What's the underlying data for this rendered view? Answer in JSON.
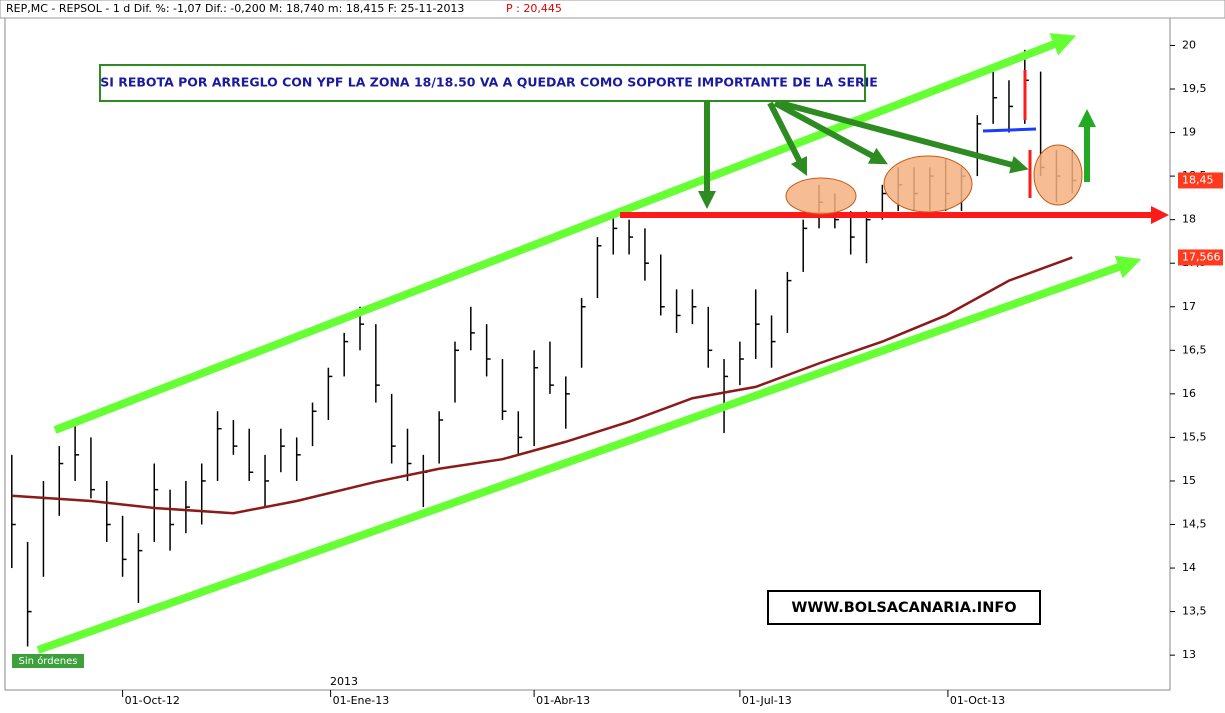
{
  "chart_data": {
    "type": "ohlc",
    "header": "REP,MC - REPSOL -  1 d Dif. %: -1,07 Dif.: -0,200 M: 18,740 m: 18,415 F: 25-11-2013",
    "header_price": "P : 20,445",
    "annotation": "SI REBOTA POR ARREGLO CON YPF LA ZONA 18/18.50 VA A QUEDAR COMO SOPORTE IMPORTANTE DE LA SERIE",
    "watermark": "WWW.BOLSACANARIA.INFO",
    "status": "Sin órdenes",
    "year_label": "2013",
    "xlim": [
      "2012-08-10",
      "2014-01-05"
    ],
    "xticks": [
      {
        "value": "2012-10-01",
        "label": "01-Oct-12"
      },
      {
        "value": "2013-01-01",
        "label": "01-Ene-13"
      },
      {
        "value": "2013-04-01",
        "label": "01-Abr-13"
      },
      {
        "value": "2013-07-01",
        "label": "01-Jul-13"
      },
      {
        "value": "2013-10-01",
        "label": "01-Oct-13"
      }
    ],
    "ylim": [
      12.6,
      20.43
    ],
    "yticks": [
      13,
      {
        "value": 13.5,
        "label": "13,5"
      },
      14,
      {
        "value": 14.5,
        "label": "14,5"
      },
      15,
      {
        "value": 15.5,
        "label": "15,5"
      },
      16,
      {
        "value": 16.5,
        "label": "16,5"
      },
      17,
      {
        "value": 17.5,
        "label": "17,5"
      },
      18,
      {
        "value": 18.5,
        "label": "18,5"
      },
      19,
      {
        "value": 19.5,
        "label": "19,5"
      },
      20
    ],
    "ohlc": {
      "color": "#000000",
      "x": [
        "2012-08-13",
        "2012-08-20",
        "2012-08-27",
        "2012-09-03",
        "2012-09-10",
        "2012-09-17",
        "2012-09-24",
        "2012-10-01",
        "2012-10-08",
        "2012-10-15",
        "2012-10-22",
        "2012-10-29",
        "2012-11-05",
        "2012-11-12",
        "2012-11-19",
        "2012-11-26",
        "2012-12-03",
        "2012-12-10",
        "2012-12-17",
        "2012-12-24",
        "2012-12-31",
        "2013-01-07",
        "2013-01-14",
        "2013-01-21",
        "2013-01-28",
        "2013-02-04",
        "2013-02-11",
        "2013-02-18",
        "2013-02-25",
        "2013-03-04",
        "2013-03-11",
        "2013-03-18",
        "2013-03-25",
        "2013-04-01",
        "2013-04-08",
        "2013-04-15",
        "2013-04-22",
        "2013-04-29",
        "2013-05-06",
        "2013-05-13",
        "2013-05-20",
        "2013-05-27",
        "2013-06-03",
        "2013-06-10",
        "2013-06-17",
        "2013-06-24",
        "2013-07-01",
        "2013-07-08",
        "2013-07-15",
        "2013-07-22",
        "2013-07-29",
        "2013-08-05",
        "2013-08-12",
        "2013-08-19",
        "2013-08-26",
        "2013-09-02",
        "2013-09-09",
        "2013-09-16",
        "2013-09-23",
        "2013-09-30",
        "2013-10-07",
        "2013-10-14",
        "2013-10-21",
        "2013-10-28",
        "2013-11-04",
        "2013-11-11",
        "2013-11-18",
        "2013-11-25"
      ],
      "high": [
        15.3,
        14.3,
        15.0,
        15.4,
        15.65,
        15.5,
        15.0,
        14.6,
        14.4,
        15.2,
        14.9,
        15.0,
        15.2,
        15.8,
        15.7,
        15.6,
        15.3,
        15.6,
        15.5,
        15.9,
        16.3,
        16.7,
        17.0,
        16.8,
        16.0,
        15.6,
        15.3,
        15.8,
        16.6,
        17.0,
        16.8,
        16.4,
        15.8,
        16.5,
        16.6,
        16.2,
        17.1,
        17.8,
        18.1,
        18.0,
        17.9,
        17.6,
        17.2,
        17.2,
        17.0,
        16.4,
        16.6,
        17.2,
        16.9,
        17.4,
        18.0,
        18.4,
        18.3,
        18.1,
        18.1,
        18.4,
        18.6,
        18.6,
        18.6,
        18.7,
        18.6,
        19.2,
        19.7,
        19.6,
        19.95,
        19.7,
        18.8,
        18.8
      ],
      "low": [
        14.0,
        13.1,
        13.9,
        14.6,
        15.0,
        14.8,
        14.3,
        13.9,
        13.6,
        14.3,
        14.2,
        14.4,
        14.5,
        15.0,
        15.3,
        15.0,
        14.7,
        15.1,
        15.0,
        15.4,
        15.7,
        16.2,
        16.5,
        15.9,
        15.2,
        15.0,
        14.7,
        15.2,
        15.9,
        16.5,
        16.2,
        15.7,
        15.3,
        15.4,
        16.0,
        15.6,
        16.3,
        17.1,
        17.6,
        17.6,
        17.3,
        16.9,
        16.7,
        16.8,
        16.3,
        15.55,
        16.1,
        16.4,
        16.3,
        16.7,
        17.4,
        17.9,
        17.9,
        17.6,
        17.5,
        18.0,
        18.1,
        18.1,
        18.1,
        18.1,
        18.1,
        18.5,
        19.1,
        19.0,
        19.1,
        18.5,
        18.2,
        18.3
      ],
      "close": [
        14.5,
        13.5,
        14.8,
        15.2,
        15.3,
        14.9,
        14.5,
        14.1,
        14.2,
        14.9,
        14.5,
        14.7,
        15.0,
        15.6,
        15.4,
        15.1,
        15.0,
        15.4,
        15.3,
        15.8,
        16.2,
        16.6,
        16.8,
        16.1,
        15.4,
        15.2,
        15.1,
        15.7,
        16.5,
        16.7,
        16.4,
        15.8,
        15.5,
        16.3,
        16.1,
        16.0,
        17.0,
        17.7,
        17.9,
        17.8,
        17.5,
        17.0,
        16.9,
        17.0,
        16.5,
        16.2,
        16.4,
        16.8,
        16.6,
        17.3,
        17.9,
        18.2,
        18.0,
        17.8,
        18.0,
        18.3,
        18.4,
        18.3,
        18.5,
        18.3,
        18.5,
        19.1,
        19.4,
        19.3,
        19.6,
        18.6,
        18.5,
        18.45
      ]
    },
    "moving_average": {
      "color": "#8b1a1a",
      "x": [
        "2012-08-13",
        "2012-09-17",
        "2012-10-15",
        "2012-11-19",
        "2012-12-17",
        "2013-01-21",
        "2013-02-18",
        "2013-03-18",
        "2013-04-15",
        "2013-05-13",
        "2013-06-10",
        "2013-07-08",
        "2013-08-05",
        "2013-09-02",
        "2013-09-30",
        "2013-10-28",
        "2013-11-25"
      ],
      "values": [
        14.83,
        14.77,
        14.69,
        14.63,
        14.77,
        14.99,
        15.14,
        15.25,
        15.45,
        15.68,
        15.95,
        16.08,
        16.35,
        16.6,
        16.9,
        17.3,
        17.566
      ]
    },
    "last_price": {
      "value": 18.45,
      "label": "18,45"
    },
    "ma_price": {
      "value": 17.566,
      "label": "17,566"
    }
  }
}
